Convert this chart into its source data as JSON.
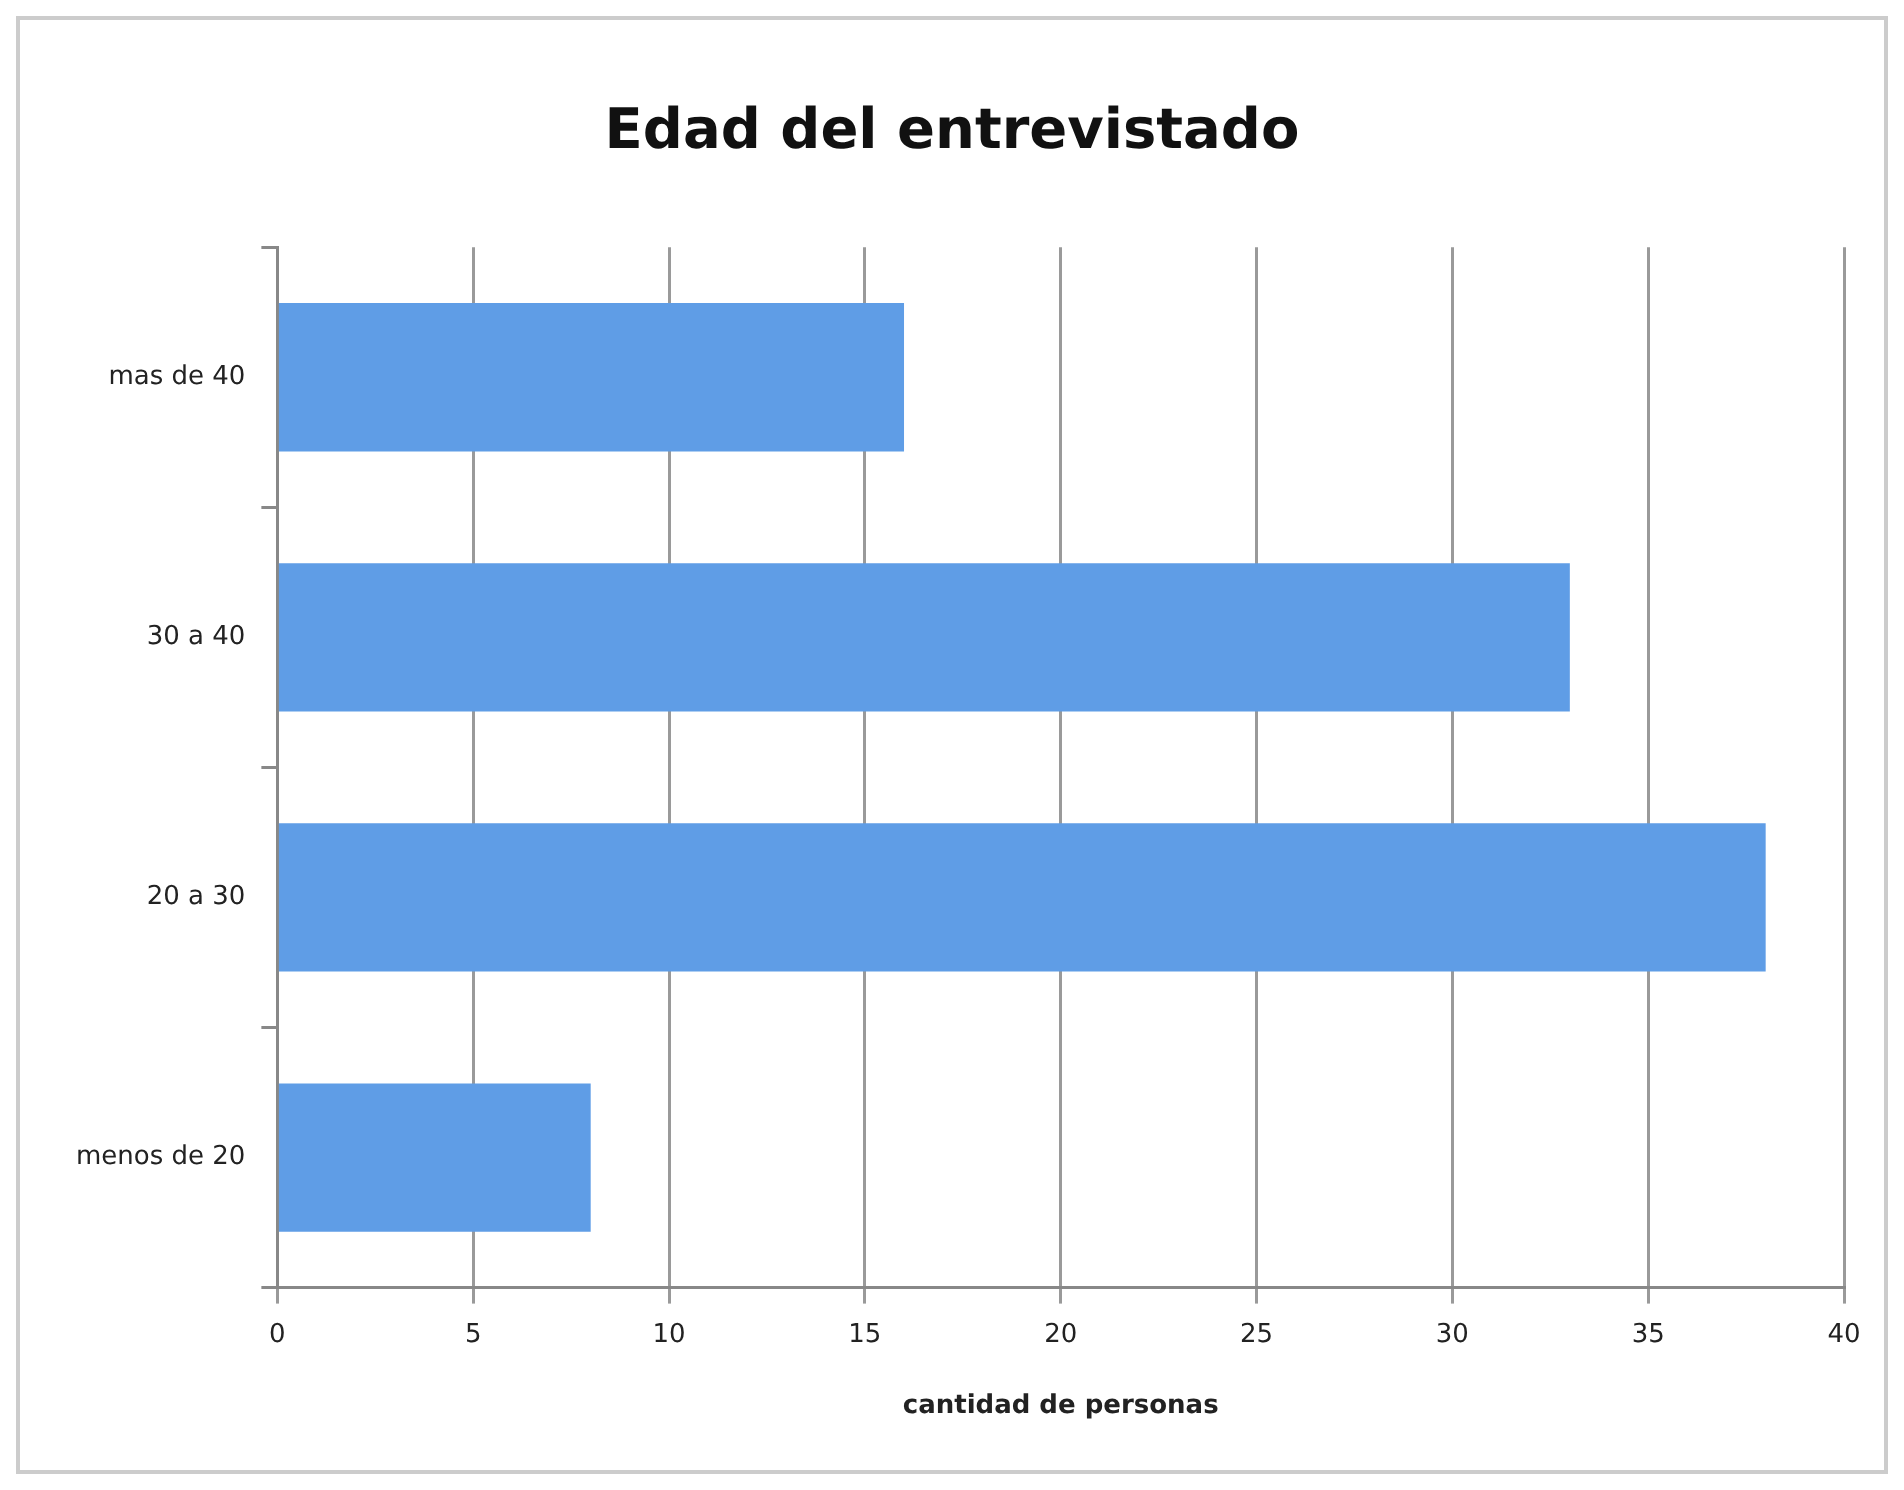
{
  "chart_data": {
    "type": "bar",
    "orientation": "horizontal",
    "title": "Edad del entrevistado",
    "xlabel": "cantidad de personas",
    "categories": [
      "mas de 40",
      "30 a 40",
      "20 a 30",
      "menos de 20"
    ],
    "values": [
      16,
      33,
      38,
      8
    ],
    "color": "#5f9de6",
    "xlim": [
      0,
      40
    ],
    "xticks": [
      0,
      5,
      10,
      15,
      20,
      25,
      30,
      35,
      40
    ],
    "grid": "x",
    "legend": false
  }
}
